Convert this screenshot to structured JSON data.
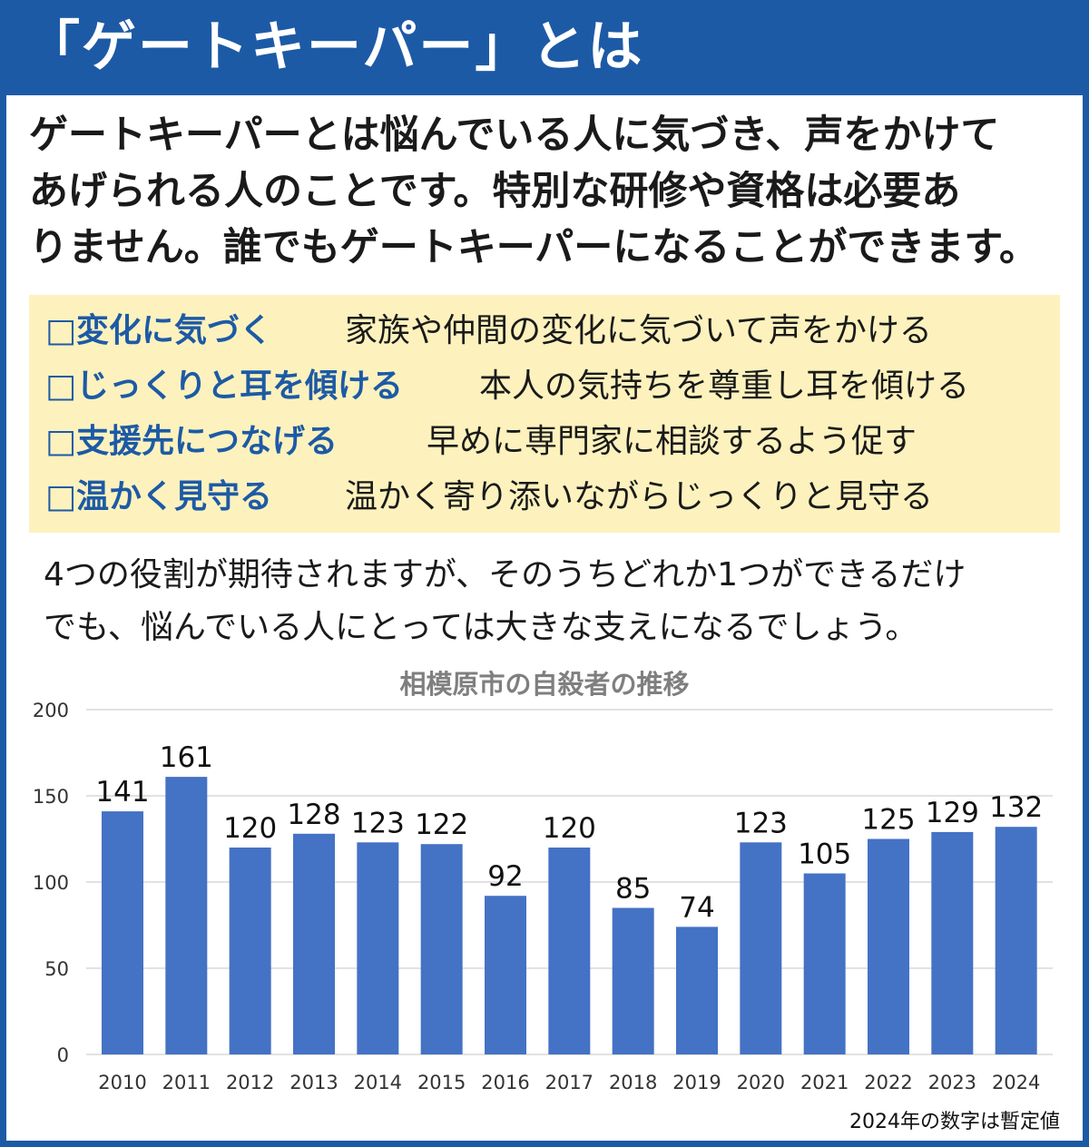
{
  "header": {
    "title": "「ゲートキーパー」とは"
  },
  "intro": {
    "lines": [
      "ゲートキーパーとは悩んでいる人に気づき、声をかけて",
      "あげられる人のことです。特別な研修や資格は必要あ",
      "りません。誰でもゲートキーパーになることができます。"
    ]
  },
  "roles": [
    {
      "box": "□",
      "title": "変化に気づく",
      "desc": "家族や仲間の変化に気づいて声をかける"
    },
    {
      "box": "□",
      "title": "じっくりと耳を傾ける",
      "desc": "本人の気持ちを尊重し耳を傾ける"
    },
    {
      "box": "□",
      "title": "支援先につなげる",
      "desc": "早めに専門家に相談するよう促す"
    },
    {
      "box": "□",
      "title": "温かく見守る",
      "desc": "温かく寄り添いながらじっくりと見守る"
    }
  ],
  "summary": {
    "lines": [
      "4つの役割が期待されますが、そのうちどれか1つができるだけ",
      "でも、悩んでいる人にとっては大きな支えになるでしょう。"
    ]
  },
  "chart_data": {
    "type": "bar",
    "title": "相模原市の自殺者の推移",
    "categories": [
      "2010",
      "2011",
      "2012",
      "2013",
      "2014",
      "2015",
      "2016",
      "2017",
      "2018",
      "2019",
      "2020",
      "2021",
      "2022",
      "2023",
      "2024"
    ],
    "values": [
      141,
      161,
      120,
      128,
      123,
      122,
      92,
      120,
      85,
      74,
      123,
      105,
      125,
      129,
      132
    ],
    "ylim": [
      0,
      200
    ],
    "yticks": [
      "0",
      "50",
      "100",
      "150",
      "200"
    ],
    "grid": true,
    "colors": {
      "bar": "#4472c4",
      "title": "#7f7f7f",
      "grid": "#d9d9d9"
    }
  },
  "footnote": "2024年の数字は暫定値",
  "colors": {
    "header": "#1d5aa6",
    "highlight": "#fdf2bd",
    "accent": "#1d5aa6"
  }
}
